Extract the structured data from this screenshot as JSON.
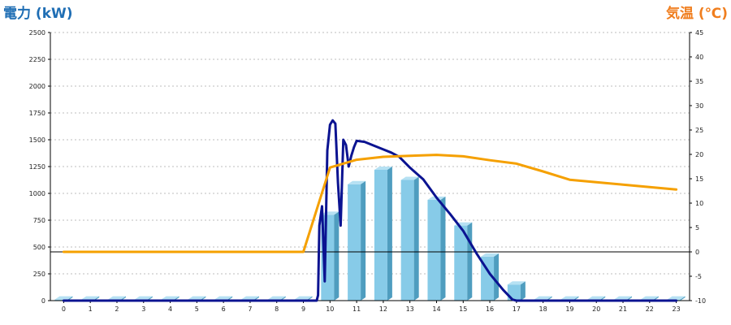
{
  "chart_data": {
    "type": "bar",
    "title": "",
    "left_axis_title": "電力 (kW)",
    "right_axis_title": "気温 (℃)",
    "colors": {
      "left_title": "#1f6eb4",
      "right_title": "#f07e1e",
      "bar_front": "#87cbe8",
      "bar_side": "#4f9dbf",
      "bar_top": "#b6e1f3",
      "power_line": "#0b1391",
      "temp_line": "#f5a000",
      "grid": "#bdbdbd",
      "axis": "#000000"
    },
    "grid": true,
    "ylim_left": [
      0,
      2500
    ],
    "yticks_left": [
      0,
      250,
      500,
      750,
      1000,
      1250,
      1500,
      1750,
      2000,
      2250,
      2500
    ],
    "ylim_right": [
      -10,
      45
    ],
    "yticks_right": [
      -10,
      -5,
      0,
      5,
      10,
      15,
      20,
      25,
      30,
      35,
      40,
      45
    ],
    "categories": [
      "0",
      "1",
      "2",
      "3",
      "4",
      "5",
      "6",
      "7",
      "8",
      "9",
      "10",
      "11",
      "12",
      "13",
      "14",
      "15",
      "16",
      "17",
      "18",
      "19",
      "20",
      "21",
      "22",
      "23"
    ],
    "series": [
      {
        "kind": "bar",
        "axis": "left",
        "values": [
          10,
          10,
          10,
          10,
          10,
          10,
          10,
          10,
          10,
          10,
          800,
          1085,
          1220,
          1125,
          940,
          700,
          410,
          150,
          10,
          10,
          10,
          10,
          10,
          10
        ]
      },
      {
        "kind": "line",
        "axis": "left",
        "points": [
          [
            0,
            0
          ],
          [
            9.5,
            0
          ],
          [
            9.55,
            50
          ],
          [
            9.6,
            700
          ],
          [
            9.7,
            880
          ],
          [
            9.8,
            180
          ],
          [
            9.9,
            1400
          ],
          [
            10.0,
            1640
          ],
          [
            10.1,
            1680
          ],
          [
            10.2,
            1650
          ],
          [
            10.3,
            1100
          ],
          [
            10.4,
            700
          ],
          [
            10.5,
            1500
          ],
          [
            10.6,
            1450
          ],
          [
            10.7,
            1250
          ],
          [
            10.8,
            1350
          ],
          [
            10.9,
            1430
          ],
          [
            11.0,
            1490
          ],
          [
            11.3,
            1480
          ],
          [
            11.6,
            1450
          ],
          [
            12.0,
            1410
          ],
          [
            12.3,
            1380
          ],
          [
            12.6,
            1340
          ],
          [
            13.0,
            1240
          ],
          [
            13.5,
            1130
          ],
          [
            14.0,
            960
          ],
          [
            14.5,
            810
          ],
          [
            15.0,
            650
          ],
          [
            15.5,
            440
          ],
          [
            16.0,
            250
          ],
          [
            16.5,
            100
          ],
          [
            16.85,
            10
          ],
          [
            17.0,
            0
          ],
          [
            23.0,
            0
          ]
        ]
      },
      {
        "kind": "line",
        "axis": "right",
        "points": [
          [
            0,
            0
          ],
          [
            9,
            0
          ],
          [
            10,
            17.3
          ],
          [
            11,
            18.9
          ],
          [
            12,
            19.5
          ],
          [
            13,
            19.7
          ],
          [
            14,
            19.9
          ],
          [
            15,
            19.6
          ],
          [
            16,
            18.8
          ],
          [
            17,
            18.1
          ],
          [
            18,
            16.5
          ],
          [
            19,
            14.8
          ],
          [
            20,
            14.3
          ],
          [
            21,
            13.8
          ],
          [
            22,
            13.3
          ],
          [
            23,
            12.8
          ]
        ]
      }
    ]
  }
}
